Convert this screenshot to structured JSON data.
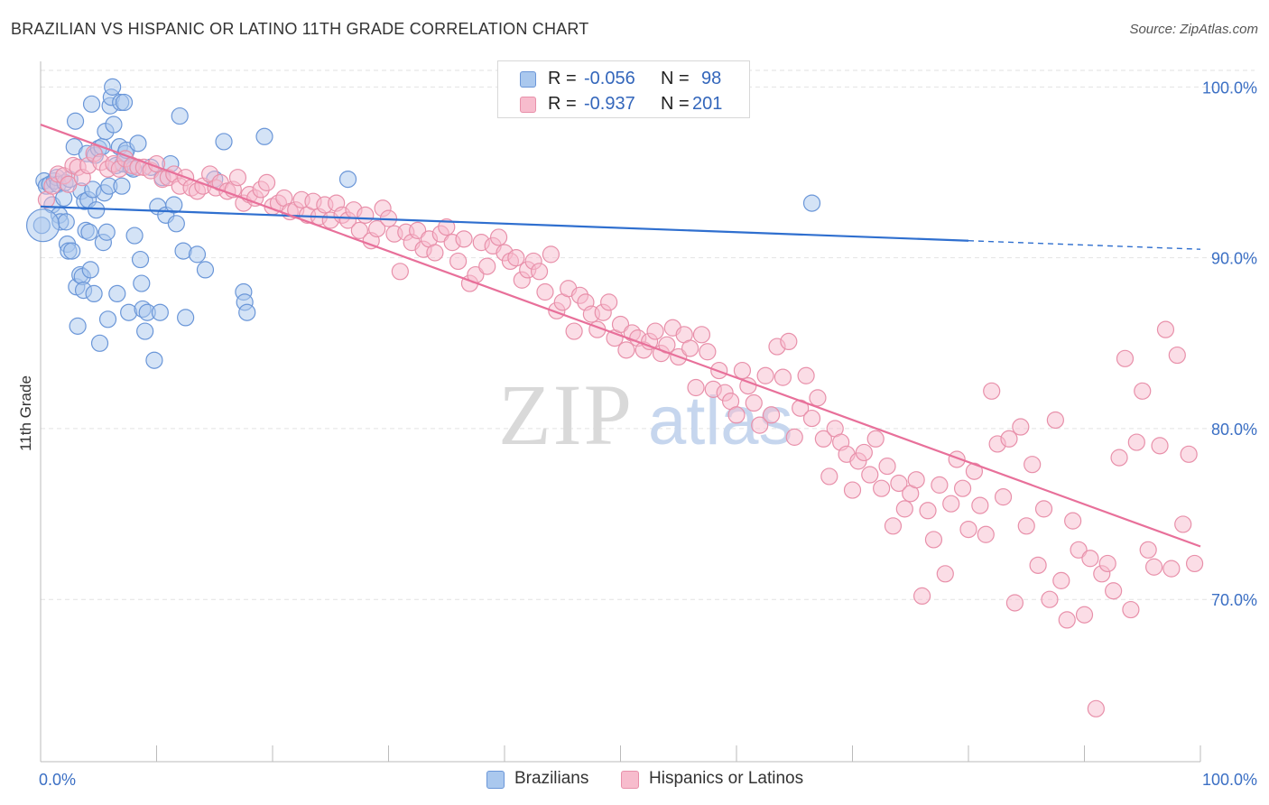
{
  "title": "BRAZILIAN VS HISPANIC OR LATINO 11TH GRADE CORRELATION CHART",
  "source": "Source: ZipAtlas.com",
  "watermark": {
    "zip": "ZIP",
    "atlas": "atlas"
  },
  "legend": {
    "r_label": "R =",
    "n_label": "N =",
    "rows": [
      {
        "r": "-0.056",
        "n": "98",
        "fill": "#aac8ee",
        "stroke": "#6a96d8"
      },
      {
        "r": "-0.937",
        "n": "201",
        "fill": "#f7bccd",
        "stroke": "#e890aa"
      }
    ]
  },
  "bottom_legend": [
    {
      "label": "Brazilians"
    },
    {
      "label": "Hispanics or Latinos"
    }
  ],
  "chart_data": {
    "type": "scatter",
    "ylabel": "11th Grade",
    "xlim": [
      0,
      100
    ],
    "ylim": [
      60.5,
      101.5
    ],
    "x_tick_labels": [
      "0.0%",
      "100.0%"
    ],
    "y_ticks": [
      {
        "value": 100,
        "label": "100.0%"
      },
      {
        "value": 90,
        "label": "90.0%"
      },
      {
        "value": 80,
        "label": "80.0%"
      },
      {
        "value": 70,
        "label": "70.0%"
      }
    ],
    "grid": true,
    "colors": {
      "blue_line": "#2f6fcf",
      "pink_line": "#e8709a",
      "tick_label": "#3b6fc4"
    },
    "series": [
      {
        "name": "Brazilians",
        "color_fill": "#aac8ee",
        "color_stroke": "#6a96d8",
        "trend": {
          "x0": 0,
          "y0": 93.0,
          "x1": 80,
          "y1": 91.0,
          "dash_to": 100,
          "dash_y": 90.5
        },
        "points": [
          [
            0.1,
            91.9
          ],
          [
            0.3,
            94.5
          ],
          [
            0.5,
            94.2
          ],
          [
            0.8,
            94.3
          ],
          [
            1.0,
            93.1
          ],
          [
            1.2,
            94.5
          ],
          [
            1.4,
            94.7
          ],
          [
            1.5,
            94.3
          ],
          [
            1.6,
            92.5
          ],
          [
            1.7,
            92.1
          ],
          [
            2.0,
            93.5
          ],
          [
            2.1,
            94.4
          ],
          [
            2.2,
            92.1
          ],
          [
            2.3,
            90.8
          ],
          [
            2.4,
            90.4
          ],
          [
            2.5,
            94.6
          ],
          [
            2.7,
            90.4
          ],
          [
            2.9,
            96.5
          ],
          [
            3.0,
            98.0
          ],
          [
            3.1,
            88.3
          ],
          [
            3.2,
            86.0
          ],
          [
            3.4,
            89.0
          ],
          [
            3.5,
            93.9
          ],
          [
            3.6,
            88.9
          ],
          [
            3.7,
            88.1
          ],
          [
            3.8,
            93.3
          ],
          [
            3.9,
            91.6
          ],
          [
            4.0,
            96.1
          ],
          [
            4.1,
            93.4
          ],
          [
            4.2,
            91.5
          ],
          [
            4.3,
            89.3
          ],
          [
            4.4,
            99.0
          ],
          [
            4.5,
            94.0
          ],
          [
            4.6,
            87.9
          ],
          [
            4.7,
            96.0
          ],
          [
            4.8,
            92.8
          ],
          [
            5.0,
            96.4
          ],
          [
            5.1,
            85.0
          ],
          [
            5.3,
            96.5
          ],
          [
            5.4,
            90.9
          ],
          [
            5.5,
            93.8
          ],
          [
            5.6,
            97.4
          ],
          [
            5.7,
            91.5
          ],
          [
            5.8,
            86.4
          ],
          [
            5.9,
            94.2
          ],
          [
            6.0,
            98.9
          ],
          [
            6.1,
            99.4
          ],
          [
            6.2,
            100.0
          ],
          [
            6.3,
            97.8
          ],
          [
            6.5,
            95.4
          ],
          [
            6.6,
            87.9
          ],
          [
            6.8,
            96.5
          ],
          [
            6.9,
            99.1
          ],
          [
            7.0,
            94.2
          ],
          [
            7.1,
            95.5
          ],
          [
            7.2,
            99.1
          ],
          [
            7.3,
            96.1
          ],
          [
            7.4,
            96.3
          ],
          [
            7.6,
            86.8
          ],
          [
            7.8,
            95.3
          ],
          [
            8.0,
            95.2
          ],
          [
            8.1,
            91.3
          ],
          [
            8.4,
            96.7
          ],
          [
            8.6,
            89.9
          ],
          [
            8.7,
            88.5
          ],
          [
            8.8,
            87.0
          ],
          [
            9.0,
            85.7
          ],
          [
            9.2,
            86.8
          ],
          [
            9.5,
            95.3
          ],
          [
            9.8,
            84.0
          ],
          [
            10.1,
            93.0
          ],
          [
            10.3,
            86.8
          ],
          [
            10.5,
            94.7
          ],
          [
            10.8,
            92.5
          ],
          [
            11.2,
            95.5
          ],
          [
            11.5,
            93.1
          ],
          [
            11.7,
            92.0
          ],
          [
            12.0,
            98.3
          ],
          [
            12.3,
            90.4
          ],
          [
            12.5,
            86.5
          ],
          [
            13.5,
            90.2
          ],
          [
            14.2,
            89.3
          ],
          [
            15.0,
            94.6
          ],
          [
            15.8,
            96.8
          ],
          [
            17.5,
            88.0
          ],
          [
            17.6,
            87.4
          ],
          [
            17.8,
            86.8
          ],
          [
            19.3,
            97.1
          ],
          [
            26.5,
            94.6
          ],
          [
            66.5,
            93.2
          ]
        ]
      },
      {
        "name": "Hispanics or Latinos",
        "color_fill": "#f7bccd",
        "color_stroke": "#e890aa",
        "trend": {
          "x0": 0,
          "y0": 97.8,
          "x1": 100,
          "y1": 73.1
        },
        "points": [
          [
            0.5,
            93.4
          ],
          [
            1.0,
            94.2
          ],
          [
            1.5,
            94.9
          ],
          [
            2.0,
            94.8
          ],
          [
            2.4,
            94.3
          ],
          [
            2.8,
            95.4
          ],
          [
            3.2,
            95.3
          ],
          [
            3.6,
            94.7
          ],
          [
            4.1,
            95.4
          ],
          [
            4.6,
            96.1
          ],
          [
            5.2,
            95.6
          ],
          [
            5.8,
            95.2
          ],
          [
            6.3,
            95.5
          ],
          [
            6.8,
            95.2
          ],
          [
            7.3,
            95.8
          ],
          [
            7.9,
            95.4
          ],
          [
            8.4,
            95.3
          ],
          [
            8.9,
            95.3
          ],
          [
            9.5,
            95.1
          ],
          [
            10.0,
            95.5
          ],
          [
            10.5,
            94.6
          ],
          [
            11.0,
            94.7
          ],
          [
            11.5,
            94.9
          ],
          [
            12.0,
            94.2
          ],
          [
            12.5,
            94.7
          ],
          [
            13.0,
            94.1
          ],
          [
            13.5,
            93.9
          ],
          [
            14.0,
            94.2
          ],
          [
            14.6,
            94.9
          ],
          [
            15.1,
            94.1
          ],
          [
            15.5,
            94.4
          ],
          [
            16.1,
            93.9
          ],
          [
            16.6,
            94.0
          ],
          [
            17.0,
            94.7
          ],
          [
            17.5,
            93.2
          ],
          [
            18.0,
            93.7
          ],
          [
            18.5,
            93.5
          ],
          [
            19.0,
            94.0
          ],
          [
            19.5,
            94.4
          ],
          [
            20.0,
            93.0
          ],
          [
            20.5,
            93.2
          ],
          [
            21.0,
            93.5
          ],
          [
            21.5,
            92.7
          ],
          [
            22.0,
            92.8
          ],
          [
            22.5,
            93.4
          ],
          [
            23.0,
            92.5
          ],
          [
            23.5,
            93.3
          ],
          [
            24.0,
            92.4
          ],
          [
            24.5,
            93.1
          ],
          [
            25.0,
            92.2
          ],
          [
            25.5,
            93.2
          ],
          [
            26.0,
            92.5
          ],
          [
            26.5,
            92.2
          ],
          [
            27.0,
            92.8
          ],
          [
            27.5,
            91.6
          ],
          [
            28.0,
            92.5
          ],
          [
            28.5,
            91.0
          ],
          [
            29.0,
            91.7
          ],
          [
            29.5,
            92.9
          ],
          [
            30.0,
            92.3
          ],
          [
            30.5,
            91.4
          ],
          [
            31.0,
            89.2
          ],
          [
            31.5,
            91.5
          ],
          [
            32.0,
            90.9
          ],
          [
            32.5,
            91.6
          ],
          [
            33.0,
            90.5
          ],
          [
            33.5,
            91.1
          ],
          [
            34.0,
            90.3
          ],
          [
            34.5,
            91.4
          ],
          [
            35.0,
            91.8
          ],
          [
            35.5,
            90.9
          ],
          [
            36.0,
            89.8
          ],
          [
            36.5,
            91.1
          ],
          [
            37.0,
            88.5
          ],
          [
            37.5,
            89.0
          ],
          [
            38.0,
            90.9
          ],
          [
            38.5,
            89.5
          ],
          [
            39.0,
            90.7
          ],
          [
            39.5,
            91.2
          ],
          [
            40.0,
            90.3
          ],
          [
            40.5,
            89.8
          ],
          [
            41.0,
            90.0
          ],
          [
            41.5,
            88.7
          ],
          [
            42.0,
            89.3
          ],
          [
            42.5,
            89.8
          ],
          [
            43.0,
            89.2
          ],
          [
            43.5,
            88.0
          ],
          [
            44.0,
            90.2
          ],
          [
            44.5,
            86.9
          ],
          [
            45.0,
            87.4
          ],
          [
            45.5,
            88.2
          ],
          [
            46.0,
            85.7
          ],
          [
            46.5,
            87.8
          ],
          [
            47.0,
            87.4
          ],
          [
            47.5,
            86.7
          ],
          [
            48.0,
            85.8
          ],
          [
            48.5,
            86.8
          ],
          [
            49.0,
            87.4
          ],
          [
            49.5,
            85.3
          ],
          [
            50.0,
            86.1
          ],
          [
            50.5,
            84.6
          ],
          [
            51.0,
            85.6
          ],
          [
            51.5,
            85.3
          ],
          [
            52.0,
            84.6
          ],
          [
            52.5,
            85.1
          ],
          [
            53.0,
            85.7
          ],
          [
            53.5,
            84.4
          ],
          [
            54.0,
            84.9
          ],
          [
            54.5,
            85.9
          ],
          [
            55.0,
            84.2
          ],
          [
            55.5,
            85.5
          ],
          [
            56.0,
            84.7
          ],
          [
            56.5,
            82.4
          ],
          [
            57.0,
            85.5
          ],
          [
            57.5,
            84.5
          ],
          [
            58.0,
            82.3
          ],
          [
            58.5,
            83.4
          ],
          [
            59.0,
            82.1
          ],
          [
            59.5,
            81.6
          ],
          [
            60.0,
            80.8
          ],
          [
            60.5,
            83.4
          ],
          [
            61.0,
            82.5
          ],
          [
            61.5,
            81.5
          ],
          [
            62.0,
            80.2
          ],
          [
            62.5,
            83.1
          ],
          [
            63.0,
            80.8
          ],
          [
            63.5,
            84.8
          ],
          [
            64.0,
            83.0
          ],
          [
            64.5,
            85.1
          ],
          [
            65.0,
            79.5
          ],
          [
            65.5,
            81.2
          ],
          [
            66.0,
            83.1
          ],
          [
            66.5,
            80.6
          ],
          [
            67.0,
            81.8
          ],
          [
            67.5,
            79.4
          ],
          [
            68.0,
            77.2
          ],
          [
            68.5,
            80.0
          ],
          [
            69.0,
            79.2
          ],
          [
            69.5,
            78.5
          ],
          [
            70.0,
            76.4
          ],
          [
            70.5,
            78.1
          ],
          [
            71.0,
            78.6
          ],
          [
            71.5,
            77.3
          ],
          [
            72.0,
            79.4
          ],
          [
            72.5,
            76.5
          ],
          [
            73.0,
            77.8
          ],
          [
            73.5,
            74.3
          ],
          [
            74.0,
            76.8
          ],
          [
            74.5,
            75.3
          ],
          [
            75.0,
            76.2
          ],
          [
            75.5,
            77.0
          ],
          [
            76.0,
            70.2
          ],
          [
            76.5,
            75.2
          ],
          [
            77.0,
            73.5
          ],
          [
            77.5,
            76.7
          ],
          [
            78.0,
            71.5
          ],
          [
            78.5,
            75.6
          ],
          [
            79.0,
            78.2
          ],
          [
            79.5,
            76.5
          ],
          [
            80.0,
            74.1
          ],
          [
            80.5,
            77.5
          ],
          [
            81.0,
            75.5
          ],
          [
            81.5,
            73.8
          ],
          [
            82.0,
            82.2
          ],
          [
            82.5,
            79.1
          ],
          [
            83.0,
            76.0
          ],
          [
            83.5,
            79.4
          ],
          [
            84.0,
            69.8
          ],
          [
            84.5,
            80.1
          ],
          [
            85.0,
            74.3
          ],
          [
            85.5,
            77.9
          ],
          [
            86.0,
            72.0
          ],
          [
            86.5,
            75.3
          ],
          [
            87.0,
            70.0
          ],
          [
            87.5,
            80.5
          ],
          [
            88.0,
            71.1
          ],
          [
            88.5,
            68.8
          ],
          [
            89.0,
            74.6
          ],
          [
            89.5,
            72.9
          ],
          [
            90.0,
            69.1
          ],
          [
            90.5,
            72.4
          ],
          [
            91.0,
            63.6
          ],
          [
            91.5,
            71.5
          ],
          [
            92.0,
            72.1
          ],
          [
            92.5,
            70.5
          ],
          [
            93.0,
            78.3
          ],
          [
            93.5,
            84.1
          ],
          [
            94.0,
            69.4
          ],
          [
            94.5,
            79.2
          ],
          [
            95.0,
            82.2
          ],
          [
            95.5,
            72.9
          ],
          [
            96.0,
            71.9
          ],
          [
            96.5,
            79.0
          ],
          [
            97.0,
            85.8
          ],
          [
            97.5,
            71.8
          ],
          [
            98.0,
            84.3
          ],
          [
            98.5,
            74.4
          ],
          [
            99.0,
            78.5
          ],
          [
            99.5,
            72.1
          ]
        ]
      }
    ]
  }
}
